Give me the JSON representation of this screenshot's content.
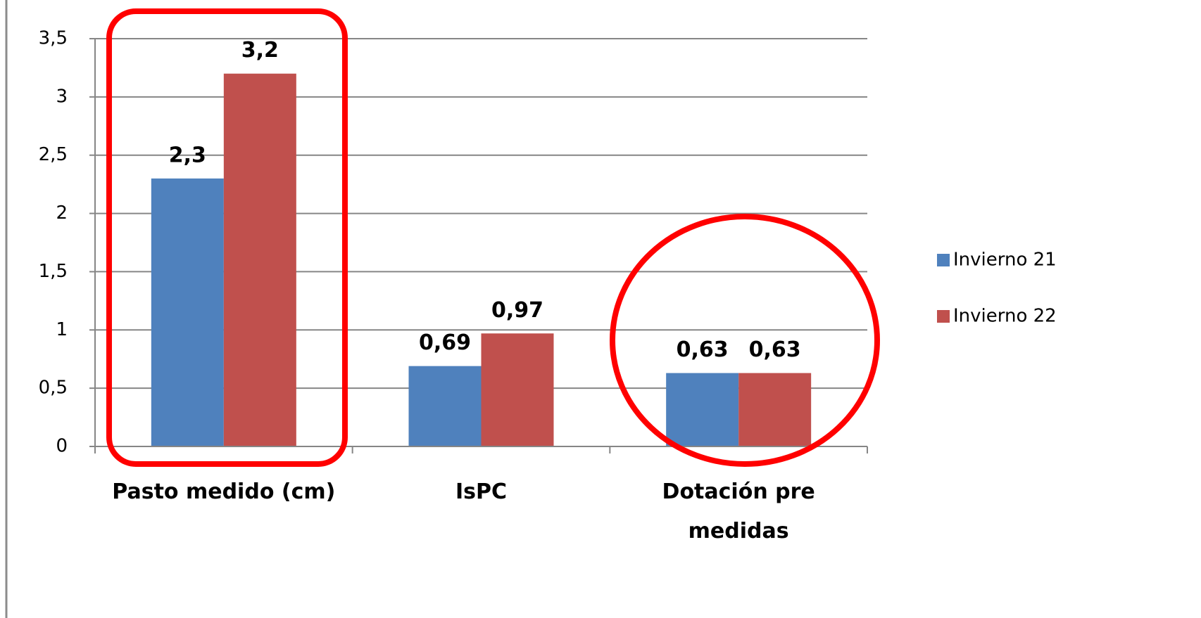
{
  "chart_data": {
    "type": "bar",
    "categories": [
      "Pasto medido (cm)",
      "IsPC",
      "Dotación pre medidas"
    ],
    "series": [
      {
        "name": "Invierno 21",
        "color": "#4f81bd",
        "values": [
          2.3,
          0.69,
          0.63
        ],
        "value_labels": [
          "2,3",
          "0,69",
          "0,63"
        ]
      },
      {
        "name": "Invierno 22",
        "color": "#c0504d",
        "values": [
          3.2,
          0.97,
          0.63
        ],
        "value_labels": [
          "3,2",
          "0,97",
          "0,63"
        ]
      }
    ],
    "ylim": [
      0,
      3.5
    ],
    "yticks": [
      0,
      {
        "value": 0.5,
        "label": "0,5"
      },
      1,
      {
        "value": 1.5,
        "label": "1,5"
      },
      2,
      {
        "value": 2.5,
        "label": "2,5"
      },
      3,
      {
        "value": 3.5,
        "label": "3,5"
      }
    ],
    "grid": true,
    "legend": "right"
  }
}
